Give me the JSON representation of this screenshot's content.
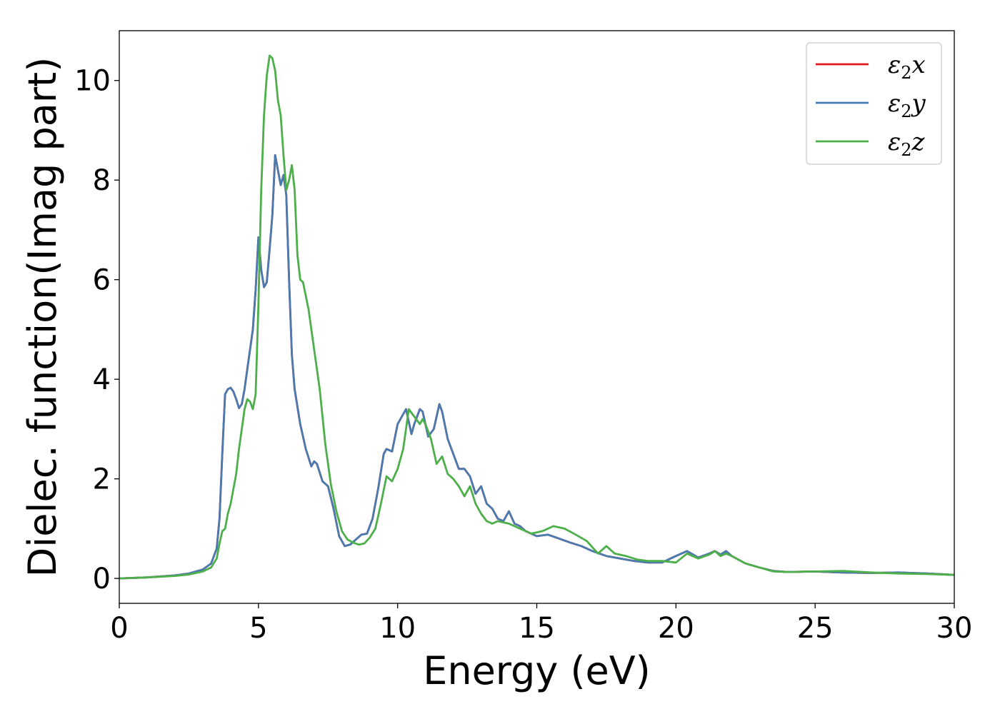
{
  "chart_data": {
    "type": "line",
    "title": "",
    "xlabel": "Energy (eV)",
    "ylabel": "Dielec. function(Imag part)",
    "xlim": [
      0,
      30
    ],
    "ylim": [
      -0.5,
      11
    ],
    "xticks": [
      0,
      5,
      10,
      15,
      20,
      25,
      30
    ],
    "yticks": [
      0,
      2,
      4,
      6,
      8,
      10
    ],
    "xtick_labels": [
      "0",
      "5",
      "10",
      "15",
      "20",
      "25",
      "30"
    ],
    "ytick_labels": [
      "0",
      "2",
      "4",
      "6",
      "8",
      "10"
    ],
    "grid": false,
    "legend_position": "top-right",
    "series": [
      {
        "name": "ε2x",
        "legend_base": "ε",
        "legend_sub": "2",
        "legend_var": "x",
        "color": "#e41a1c",
        "x": [
          0,
          1,
          2,
          2.5,
          3,
          3.3,
          3.5,
          3.6,
          3.7,
          3.8,
          3.9,
          4.0,
          4.1,
          4.2,
          4.3,
          4.4,
          4.5,
          4.6,
          4.7,
          4.8,
          4.9,
          5.0,
          5.1,
          5.2,
          5.3,
          5.4,
          5.5,
          5.6,
          5.7,
          5.8,
          5.9,
          6.0,
          6.1,
          6.2,
          6.3,
          6.5,
          6.7,
          6.9,
          7.0,
          7.1,
          7.3,
          7.5,
          7.7,
          7.9,
          8.1,
          8.3,
          8.5,
          8.7,
          8.9,
          9.1,
          9.3,
          9.5,
          9.6,
          9.8,
          10.0,
          10.3,
          10.5,
          10.6,
          10.8,
          10.9,
          11.1,
          11.3,
          11.5,
          11.6,
          11.8,
          12.0,
          12.2,
          12.4,
          12.6,
          12.8,
          13.0,
          13.2,
          13.4,
          13.6,
          13.8,
          14.0,
          14.2,
          14.4,
          14.6,
          15.0,
          15.4,
          15.8,
          16.2,
          16.6,
          17.0,
          17.5,
          18.0,
          18.5,
          19.0,
          19.5,
          20.0,
          20.4,
          20.8,
          21.2,
          21.4,
          21.6,
          21.8,
          22.0,
          22.5,
          23.0,
          23.5,
          24.0,
          25.0,
          26.0,
          27.0,
          28.0,
          29.0,
          30.0
        ],
        "y": [
          0,
          0.02,
          0.06,
          0.1,
          0.18,
          0.3,
          0.6,
          1.2,
          2.5,
          3.7,
          3.8,
          3.83,
          3.75,
          3.6,
          3.42,
          3.5,
          3.8,
          4.2,
          4.6,
          5.0,
          5.8,
          6.85,
          6.2,
          5.85,
          5.95,
          6.6,
          7.3,
          8.5,
          8.2,
          7.9,
          8.1,
          7.7,
          6.0,
          4.5,
          3.8,
          3.1,
          2.6,
          2.25,
          2.35,
          2.3,
          1.95,
          1.85,
          1.4,
          0.85,
          0.65,
          0.68,
          0.78,
          0.88,
          0.9,
          1.2,
          1.8,
          2.5,
          2.6,
          2.55,
          3.1,
          3.4,
          2.9,
          3.1,
          3.4,
          3.35,
          2.85,
          3.0,
          3.5,
          3.35,
          2.8,
          2.5,
          2.2,
          2.2,
          2.05,
          1.7,
          1.85,
          1.5,
          1.4,
          1.2,
          1.15,
          1.35,
          1.1,
          1.05,
          0.95,
          0.85,
          0.88,
          0.8,
          0.72,
          0.65,
          0.55,
          0.45,
          0.4,
          0.35,
          0.32,
          0.32,
          0.45,
          0.55,
          0.42,
          0.5,
          0.55,
          0.48,
          0.55,
          0.45,
          0.3,
          0.22,
          0.15,
          0.13,
          0.14,
          0.12,
          0.11,
          0.12,
          0.1,
          0.07
        ]
      },
      {
        "name": "ε2y",
        "legend_base": "ε",
        "legend_sub": "2",
        "legend_var": "y",
        "color": "#4a7bb0",
        "x": [
          0,
          1,
          2,
          2.5,
          3,
          3.3,
          3.5,
          3.6,
          3.7,
          3.8,
          3.9,
          4.0,
          4.1,
          4.2,
          4.3,
          4.4,
          4.5,
          4.6,
          4.7,
          4.8,
          4.9,
          5.0,
          5.1,
          5.2,
          5.3,
          5.4,
          5.5,
          5.6,
          5.7,
          5.8,
          5.9,
          6.0,
          6.1,
          6.2,
          6.3,
          6.5,
          6.7,
          6.9,
          7.0,
          7.1,
          7.3,
          7.5,
          7.7,
          7.9,
          8.1,
          8.3,
          8.5,
          8.7,
          8.9,
          9.1,
          9.3,
          9.5,
          9.6,
          9.8,
          10.0,
          10.3,
          10.5,
          10.6,
          10.8,
          10.9,
          11.1,
          11.3,
          11.5,
          11.6,
          11.8,
          12.0,
          12.2,
          12.4,
          12.6,
          12.8,
          13.0,
          13.2,
          13.4,
          13.6,
          13.8,
          14.0,
          14.2,
          14.4,
          14.6,
          15.0,
          15.4,
          15.8,
          16.2,
          16.6,
          17.0,
          17.5,
          18.0,
          18.5,
          19.0,
          19.5,
          20.0,
          20.4,
          20.8,
          21.2,
          21.4,
          21.6,
          21.8,
          22.0,
          22.5,
          23.0,
          23.5,
          24.0,
          25.0,
          26.0,
          27.0,
          28.0,
          29.0,
          30.0
        ],
        "y": [
          0,
          0.02,
          0.06,
          0.1,
          0.18,
          0.3,
          0.6,
          1.2,
          2.5,
          3.7,
          3.8,
          3.83,
          3.75,
          3.6,
          3.42,
          3.5,
          3.8,
          4.2,
          4.6,
          5.0,
          5.8,
          6.85,
          6.2,
          5.85,
          5.95,
          6.6,
          7.3,
          8.5,
          8.2,
          7.9,
          8.1,
          7.7,
          6.0,
          4.5,
          3.8,
          3.1,
          2.6,
          2.25,
          2.35,
          2.3,
          1.95,
          1.85,
          1.4,
          0.85,
          0.65,
          0.68,
          0.78,
          0.88,
          0.9,
          1.2,
          1.8,
          2.5,
          2.6,
          2.55,
          3.1,
          3.4,
          2.9,
          3.1,
          3.4,
          3.35,
          2.85,
          3.0,
          3.5,
          3.35,
          2.8,
          2.5,
          2.2,
          2.2,
          2.05,
          1.7,
          1.85,
          1.5,
          1.4,
          1.2,
          1.15,
          1.35,
          1.1,
          1.05,
          0.95,
          0.85,
          0.88,
          0.8,
          0.72,
          0.65,
          0.55,
          0.45,
          0.4,
          0.35,
          0.32,
          0.32,
          0.45,
          0.55,
          0.42,
          0.5,
          0.55,
          0.48,
          0.55,
          0.45,
          0.3,
          0.22,
          0.15,
          0.13,
          0.14,
          0.12,
          0.11,
          0.12,
          0.1,
          0.07
        ]
      },
      {
        "name": "ε2z",
        "legend_base": "ε",
        "legend_sub": "2",
        "legend_var": "z",
        "color": "#4daf4a",
        "x": [
          0,
          1,
          2,
          2.5,
          3,
          3.3,
          3.5,
          3.6,
          3.7,
          3.8,
          3.9,
          4.0,
          4.1,
          4.2,
          4.3,
          4.5,
          4.6,
          4.7,
          4.8,
          4.9,
          5.0,
          5.1,
          5.2,
          5.3,
          5.4,
          5.5,
          5.6,
          5.7,
          5.8,
          5.9,
          6.0,
          6.1,
          6.2,
          6.3,
          6.4,
          6.5,
          6.6,
          6.8,
          7.0,
          7.2,
          7.4,
          7.6,
          7.8,
          8.0,
          8.2,
          8.4,
          8.6,
          8.8,
          9.0,
          9.2,
          9.4,
          9.6,
          9.8,
          10.0,
          10.2,
          10.4,
          10.6,
          10.8,
          10.9,
          11.0,
          11.2,
          11.4,
          11.6,
          11.8,
          12.0,
          12.2,
          12.4,
          12.6,
          12.8,
          13.0,
          13.2,
          13.4,
          13.6,
          14.0,
          14.4,
          14.8,
          15.2,
          15.6,
          16.0,
          16.4,
          16.8,
          17.2,
          17.5,
          17.8,
          18.2,
          18.6,
          19.0,
          19.5,
          20.0,
          20.4,
          20.8,
          21.2,
          21.4,
          21.6,
          21.8,
          22.0,
          22.5,
          23.0,
          23.5,
          24.0,
          25.0,
          26.0,
          27.0,
          28.0,
          29.0,
          30.0
        ],
        "y": [
          0,
          0.02,
          0.05,
          0.08,
          0.14,
          0.22,
          0.4,
          0.7,
          0.95,
          1.0,
          1.3,
          1.5,
          1.8,
          2.1,
          2.6,
          3.4,
          3.6,
          3.55,
          3.4,
          3.7,
          5.5,
          7.8,
          9.3,
          10.1,
          10.5,
          10.45,
          10.2,
          9.6,
          9.3,
          8.5,
          7.8,
          8.0,
          8.3,
          7.8,
          6.5,
          6.0,
          5.95,
          5.4,
          4.6,
          3.8,
          2.7,
          1.9,
          1.35,
          0.95,
          0.78,
          0.72,
          0.68,
          0.7,
          0.82,
          1.0,
          1.5,
          2.05,
          1.95,
          2.2,
          2.6,
          3.4,
          3.25,
          3.1,
          3.2,
          3.1,
          2.8,
          2.3,
          2.45,
          2.1,
          2.0,
          1.85,
          1.65,
          1.85,
          1.5,
          1.3,
          1.15,
          1.1,
          1.15,
          1.1,
          1.0,
          0.9,
          0.95,
          1.05,
          1.0,
          0.88,
          0.75,
          0.5,
          0.65,
          0.5,
          0.45,
          0.38,
          0.35,
          0.35,
          0.32,
          0.5,
          0.4,
          0.48,
          0.55,
          0.45,
          0.5,
          0.45,
          0.3,
          0.22,
          0.14,
          0.13,
          0.14,
          0.15,
          0.12,
          0.1,
          0.09,
          0.07
        ]
      }
    ]
  }
}
